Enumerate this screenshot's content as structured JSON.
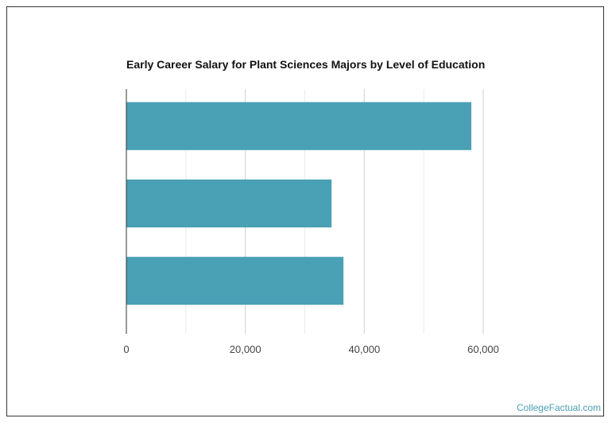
{
  "chart_data": {
    "type": "bar",
    "orientation": "horizontal",
    "title": "Early Career Salary for Plant Sciences Majors by Level of Education",
    "xlabel": "",
    "ylabel": "",
    "categories": [
      "",
      "",
      ""
    ],
    "values": [
      58000,
      34500,
      36500
    ],
    "xlim": [
      0,
      60000
    ],
    "x_ticks": [
      0,
      20000,
      40000,
      60000
    ],
    "x_tick_labels": [
      "0",
      "20,000",
      "40,000",
      "60,000"
    ],
    "grid": "vertical",
    "bar_color": "#4aa0b5"
  },
  "watermark": "CollegeFactual.com"
}
